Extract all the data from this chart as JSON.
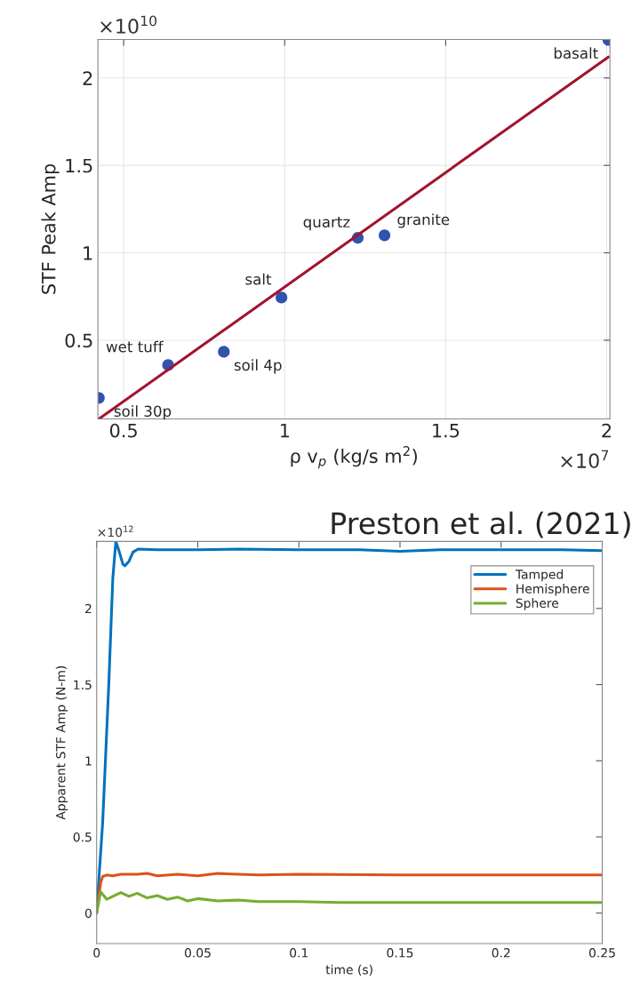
{
  "chart_data": [
    {
      "type": "scatter",
      "xlabel": "ρ v$_{p}$ (kg/s m$^{2}$)",
      "ylabel": "STF Peak Amp",
      "xlim": [
        0.42,
        2.01
      ],
      "ylim": [
        0.05,
        2.22
      ],
      "xticks": [
        0.5,
        1,
        1.5,
        2
      ],
      "yticks": [
        0.5,
        1,
        1.5,
        2
      ],
      "grid": true,
      "series": [
        {
          "type": "line",
          "color": "#a2142f",
          "x": [
            0.423,
            2.005
          ],
          "values": [
            0.05,
            2.12
          ]
        },
        {
          "type": "scatter",
          "marker": "circle",
          "color": "#3352b0",
          "x": [
            0.423,
            0.638,
            0.811,
            0.99,
            1.227,
            1.31,
            2.005
          ],
          "values": [
            0.17,
            0.358,
            0.434,
            0.744,
            1.086,
            1.1,
            2.218
          ]
        }
      ],
      "annotations": [
        {
          "text": "soil 30p",
          "x": 0.423,
          "y": 0.17
        },
        {
          "text": "wet tuff",
          "x": 0.638,
          "y": 0.358
        },
        {
          "text": "soil 4p",
          "x": 0.811,
          "y": 0.434
        },
        {
          "text": "salt",
          "x": 0.99,
          "y": 0.744
        },
        {
          "text": "quartz",
          "x": 1.227,
          "y": 1.086
        },
        {
          "text": "granite",
          "x": 1.31,
          "y": 1.1
        },
        {
          "text": "basalt",
          "x": 2.005,
          "y": 2.218
        },
        "×10$^{10}$",
        "×10$^{7}$"
      ]
    },
    {
      "type": "line",
      "title": "Preston et al. (2021)",
      "xlabel": "time (s)",
      "ylabel": "Apparent STF Amp (N-m)",
      "xlim": [
        0,
        0.25
      ],
      "ylim": [
        -0.2,
        2.44
      ],
      "xticks": [
        0,
        0.05,
        0.1,
        0.15,
        0.2,
        0.25
      ],
      "yticks": [
        0,
        0.5,
        1,
        1.5,
        2
      ],
      "grid": false,
      "legend": "top right",
      "series": [
        {
          "name": "Tamped",
          "color": "#0072bd",
          "x": [
            0,
            0.003,
            0.006,
            0.008,
            0.0095,
            0.011,
            0.013,
            0.014,
            0.016,
            0.018,
            0.0205,
            0.03,
            0.05,
            0.07,
            0.1,
            0.13,
            0.15,
            0.17,
            0.2,
            0.23,
            0.25
          ],
          "values": [
            0,
            0.6,
            1.5,
            2.2,
            2.44,
            2.38,
            2.29,
            2.28,
            2.31,
            2.37,
            2.39,
            2.385,
            2.385,
            2.39,
            2.385,
            2.385,
            2.375,
            2.385,
            2.385,
            2.385,
            2.38
          ]
        },
        {
          "name": "Hemisphere",
          "color": "#d95319",
          "x": [
            0,
            0.002,
            0.003,
            0.005,
            0.008,
            0.012,
            0.02,
            0.025,
            0.03,
            0.04,
            0.05,
            0.06,
            0.08,
            0.1,
            0.15,
            0.2,
            0.25
          ],
          "values": [
            0,
            0.2,
            0.24,
            0.25,
            0.245,
            0.255,
            0.255,
            0.26,
            0.245,
            0.255,
            0.245,
            0.26,
            0.25,
            0.255,
            0.25,
            0.25,
            0.25
          ]
        },
        {
          "name": "Sphere",
          "color": "#77ac30",
          "x": [
            0,
            0.002,
            0.005,
            0.008,
            0.012,
            0.016,
            0.02,
            0.025,
            0.03,
            0.035,
            0.04,
            0.045,
            0.05,
            0.06,
            0.07,
            0.08,
            0.1,
            0.12,
            0.15,
            0.2,
            0.25
          ],
          "values": [
            0,
            0.14,
            0.09,
            0.11,
            0.135,
            0.11,
            0.13,
            0.1,
            0.115,
            0.09,
            0.105,
            0.08,
            0.095,
            0.08,
            0.085,
            0.075,
            0.075,
            0.07,
            0.07,
            0.07,
            0.07
          ]
        }
      ],
      "annotations": [
        "×10$^{12}$"
      ]
    }
  ]
}
